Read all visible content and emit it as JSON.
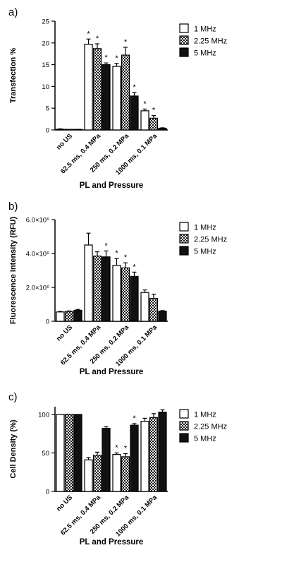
{
  "chart_data": [
    {
      "type": "bar",
      "panel_label": "a)",
      "ylabel": "Transfection %",
      "xlabel": "PL and Pressure",
      "categories": [
        "no US",
        "62.5 ms, 0.4 MPa",
        "250 ms, 0.2 MPa",
        "1000 ms, 0.1 MPa"
      ],
      "ylim": [
        0,
        25
      ],
      "yticks": [
        0,
        5,
        10,
        15,
        20,
        25
      ],
      "ytick_labels": [
        "0",
        "5",
        "10",
        "15",
        "20",
        "25"
      ],
      "legend_position": "top-right",
      "series": [
        {
          "name": "1 MHz",
          "pattern": "open",
          "values": [
            0.15,
            19.7,
            14.6,
            4.4
          ],
          "errors": [
            0.1,
            1.2,
            0.7,
            0.4
          ]
        },
        {
          "name": "2.25 MHz",
          "pattern": "checker",
          "values": [
            0.0,
            18.7,
            17.2,
            2.7
          ],
          "errors": [
            0.0,
            1.1,
            1.8,
            0.6
          ]
        },
        {
          "name": "5 MHz",
          "pattern": "solid",
          "values": [
            0.0,
            15.0,
            7.8,
            0.4
          ],
          "errors": [
            0.0,
            0.4,
            0.8,
            0.1
          ]
        }
      ],
      "significance": [
        [
          false,
          true,
          true,
          true
        ],
        [
          false,
          true,
          true,
          true
        ],
        [
          false,
          true,
          true,
          false
        ]
      ],
      "significance_marker": "*"
    },
    {
      "type": "bar",
      "panel_label": "b)",
      "ylabel": "Fluorescence Intensity (RFU)",
      "xlabel": "PL and Pressure",
      "categories": [
        "no US",
        "62.5 ms, 0.4 MPa",
        "250 ms, 0.2 MPa",
        "1000 ms, 0.1 MPa"
      ],
      "ylim": [
        0,
        6000000
      ],
      "yticks": [
        0,
        2000000,
        4000000,
        6000000
      ],
      "ytick_labels": [
        "0",
        "2.0×10⁶",
        "4.0×10⁶",
        "6.0×10⁶"
      ],
      "legend_position": "top-right",
      "series": [
        {
          "name": "1 MHz",
          "pattern": "open",
          "values": [
            550000,
            4500000,
            3300000,
            1700000
          ],
          "errors": [
            30000,
            700000,
            400000,
            150000
          ]
        },
        {
          "name": "2.25 MHz",
          "pattern": "checker",
          "values": [
            580000,
            3850000,
            3150000,
            1350000
          ],
          "errors": [
            30000,
            250000,
            300000,
            250000
          ]
        },
        {
          "name": "5 MHz",
          "pattern": "solid",
          "values": [
            650000,
            3800000,
            2650000,
            600000
          ],
          "errors": [
            50000,
            350000,
            250000,
            30000
          ]
        }
      ],
      "significance": [
        [
          false,
          false,
          true,
          false
        ],
        [
          false,
          false,
          true,
          false
        ],
        [
          false,
          true,
          true,
          false
        ]
      ],
      "significance_marker": "*"
    },
    {
      "type": "bar",
      "panel_label": "c)",
      "ylabel": "Cell Density (%)",
      "xlabel": "PL and Pressure",
      "categories": [
        "no US",
        "62.5 ms, 0.4 MPa",
        "250 ms, 0.2 MPa",
        "1000 ms, 0.1 MPa"
      ],
      "ylim": [
        0,
        110
      ],
      "yticks": [
        0,
        50,
        100
      ],
      "ytick_labels": [
        "0",
        "50",
        "100"
      ],
      "legend_position": "top-right",
      "series": [
        {
          "name": "1 MHz",
          "pattern": "open",
          "values": [
            100,
            41,
            48,
            91
          ],
          "errors": [
            0,
            3,
            2,
            4
          ]
        },
        {
          "name": "2.25 MHz",
          "pattern": "checker",
          "values": [
            100,
            47,
            45,
            96
          ],
          "errors": [
            0,
            4,
            4,
            5
          ]
        },
        {
          "name": "5 MHz",
          "pattern": "solid",
          "values": [
            100,
            82,
            86,
            103
          ],
          "errors": [
            0,
            2,
            2,
            3
          ]
        }
      ],
      "significance": [
        [
          false,
          false,
          true,
          false
        ],
        [
          false,
          false,
          true,
          false
        ],
        [
          false,
          false,
          true,
          false
        ]
      ],
      "significance_marker": "*"
    }
  ]
}
